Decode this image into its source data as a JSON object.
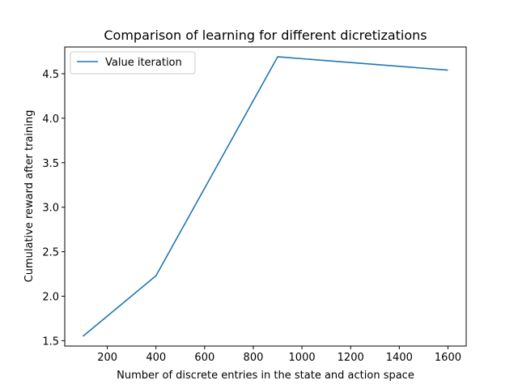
{
  "chart_data": {
    "type": "line",
    "title": "Comparison of learning for different dicretizations",
    "xlabel": "Number of discrete entries in the state and action space",
    "ylabel": "Cumulative reward after training",
    "xlim": [
      25,
      1675
    ],
    "ylim": [
      1.44,
      4.8
    ],
    "xticks": [
      200,
      400,
      600,
      800,
      1000,
      1200,
      1400,
      1600
    ],
    "yticks": [
      1.5,
      2.0,
      2.5,
      3.0,
      3.5,
      4.0,
      4.5
    ],
    "grid": false,
    "legend_position": "top-left",
    "series": [
      {
        "name": "Value iteration",
        "color": "#1f77b4",
        "x": [
          100,
          400,
          900,
          1600
        ],
        "y": [
          1.55,
          2.23,
          4.69,
          4.54
        ]
      }
    ]
  }
}
